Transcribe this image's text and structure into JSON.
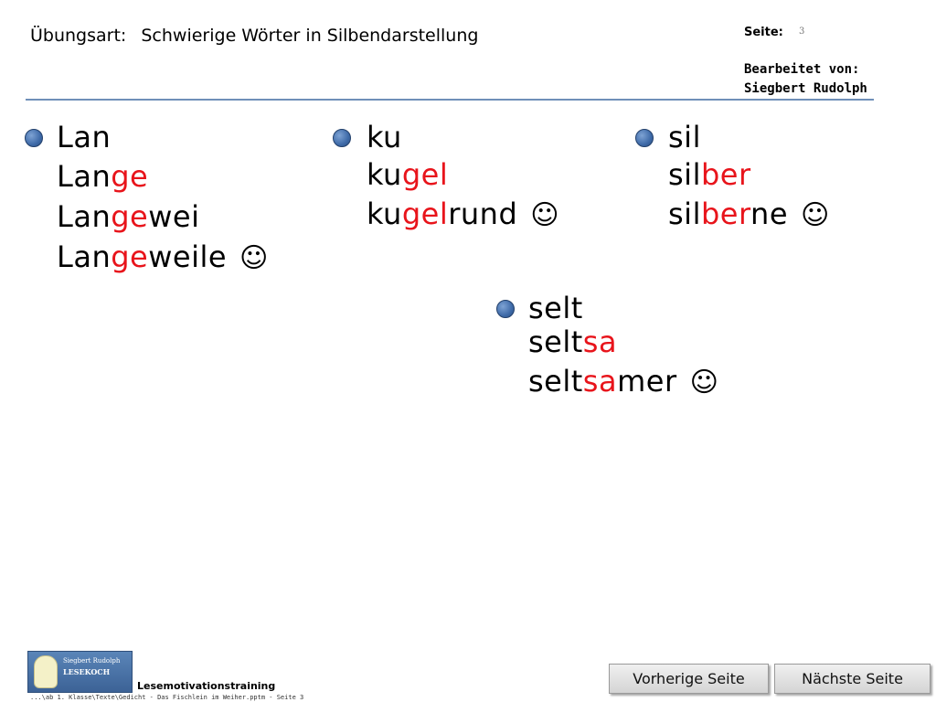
{
  "header": {
    "label": "Übungsart:",
    "title": "Schwierige Wörter in Silbendarstellung",
    "page_label": "Seite:",
    "page_number": "3",
    "edited_by_label": "Bearbeitet von:",
    "edited_by_name": "Siegbert Rudolph"
  },
  "groups": [
    {
      "lines": [
        [
          {
            "t": "Lan",
            "red": false
          }
        ],
        [
          {
            "t": "Lan",
            "red": false
          },
          {
            "t": "ge",
            "red": true
          }
        ],
        [
          {
            "t": "Lan",
            "red": false
          },
          {
            "t": "ge",
            "red": true
          },
          {
            "t": "wei",
            "red": false
          }
        ],
        [
          {
            "t": "Lan",
            "red": false
          },
          {
            "t": "ge",
            "red": true
          },
          {
            "t": "weile",
            "red": false
          }
        ]
      ]
    },
    {
      "lines": [
        [
          {
            "t": "ku",
            "red": false
          }
        ],
        [
          {
            "t": "ku",
            "red": false
          },
          {
            "t": "gel",
            "red": true
          }
        ],
        [
          {
            "t": "ku",
            "red": false
          },
          {
            "t": "gel",
            "red": true
          },
          {
            "t": "rund",
            "red": false
          }
        ]
      ]
    },
    {
      "lines": [
        [
          {
            "t": "sil",
            "red": false
          }
        ],
        [
          {
            "t": "sil",
            "red": false
          },
          {
            "t": "ber",
            "red": true
          }
        ],
        [
          {
            "t": "sil",
            "red": false
          },
          {
            "t": "ber",
            "red": true
          },
          {
            "t": "ne",
            "red": false
          }
        ]
      ]
    },
    {
      "lines": [
        [
          {
            "t": "selt",
            "red": false
          }
        ],
        [
          {
            "t": "selt",
            "red": false
          },
          {
            "t": "sa",
            "red": true
          }
        ],
        [
          {
            "t": "selt",
            "red": false
          },
          {
            "t": "sa",
            "red": true
          },
          {
            "t": "mer",
            "red": false
          }
        ]
      ]
    }
  ],
  "smiley": "☺",
  "footer": {
    "logo_line1": "Siegbert Rudolph",
    "logo_line2": "LESEKOCH",
    "label": "Lesemotivationstraining",
    "path": "...\\ab 1. Klasse\\Texte\\Gedicht - Das Fischlein im Weiher.pptm - Seite 3",
    "prev_button": "Vorherige Seite",
    "next_button": "Nächste Seite"
  },
  "colors": {
    "syllable_highlight": "#e8141b",
    "rule": "#6f8fb8",
    "bullet": "#3e6aa8"
  }
}
